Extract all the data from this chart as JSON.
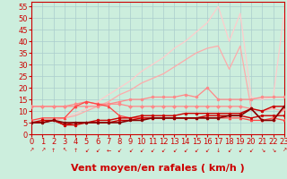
{
  "title": "",
  "xlabel": "Vent moyen/en rafales ( km/h )",
  "ylabel": "",
  "bg_color": "#cceedd",
  "grid_color": "#aacccc",
  "x_ticks": [
    0,
    1,
    2,
    3,
    4,
    5,
    6,
    7,
    8,
    9,
    10,
    11,
    12,
    13,
    14,
    15,
    16,
    17,
    18,
    19,
    20,
    21,
    22,
    23
  ],
  "y_ticks": [
    0,
    5,
    10,
    15,
    20,
    25,
    30,
    35,
    40,
    45,
    50,
    55
  ],
  "ylim": [
    0,
    57
  ],
  "xlim": [
    0,
    23
  ],
  "series": [
    {
      "comment": "lightest pink - wide fan top line, rises to ~55 at x=17, then ~40, then ~52",
      "x": [
        0,
        1,
        2,
        3,
        4,
        5,
        6,
        7,
        8,
        9,
        10,
        11,
        12,
        13,
        14,
        15,
        16,
        17,
        18,
        19,
        20,
        21,
        22,
        23
      ],
      "y": [
        5,
        5,
        6,
        7,
        9,
        11,
        14,
        17,
        20,
        23,
        27,
        30,
        33,
        37,
        40,
        44,
        48,
        55,
        40,
        52,
        16,
        15,
        16,
        52
      ],
      "color": "#ffcccc",
      "lw": 0.9,
      "marker": null,
      "ms": 0
    },
    {
      "comment": "medium pink - second fan line, rises to ~38 at x=17, drops to ~28 x=18",
      "x": [
        0,
        1,
        2,
        3,
        4,
        5,
        6,
        7,
        8,
        9,
        10,
        11,
        12,
        13,
        14,
        15,
        16,
        17,
        18,
        19,
        20,
        21,
        22,
        23
      ],
      "y": [
        5,
        5,
        6,
        7,
        8,
        10,
        12,
        14,
        17,
        19,
        22,
        24,
        26,
        29,
        32,
        35,
        37,
        38,
        28,
        38,
        11,
        10,
        11,
        10
      ],
      "color": "#ffaaaa",
      "lw": 0.9,
      "marker": null,
      "ms": 0
    },
    {
      "comment": "medium pink dot line - flat around 15-16 with dots, peaks ~20 at x=16",
      "x": [
        0,
        1,
        2,
        3,
        4,
        5,
        6,
        7,
        8,
        9,
        10,
        11,
        12,
        13,
        14,
        15,
        16,
        17,
        18,
        19,
        20,
        21,
        22,
        23
      ],
      "y": [
        12,
        12,
        12,
        12,
        12,
        12,
        12,
        13,
        14,
        15,
        15,
        16,
        16,
        16,
        17,
        16,
        20,
        15,
        15,
        15,
        15,
        16,
        16,
        16
      ],
      "color": "#ff8888",
      "lw": 0.9,
      "marker": "o",
      "ms": 2.0
    },
    {
      "comment": "pink line with diamonds - humped shape peak ~14 at x=4-5, then flat ~12",
      "x": [
        0,
        1,
        2,
        3,
        4,
        5,
        6,
        7,
        8,
        9,
        10,
        11,
        12,
        13,
        14,
        15,
        16,
        17,
        18,
        19,
        20,
        21,
        22,
        23
      ],
      "y": [
        12,
        12,
        12,
        12,
        13,
        14,
        13,
        13,
        13,
        12,
        12,
        12,
        12,
        12,
        12,
        12,
        12,
        12,
        12,
        12,
        11,
        6,
        6,
        11
      ],
      "color": "#ff8888",
      "lw": 0.9,
      "marker": "D",
      "ms": 2.0
    },
    {
      "comment": "medium red line with triangles - humped around x=3-5, ~14, then flat ~6-7",
      "x": [
        0,
        1,
        2,
        3,
        4,
        5,
        6,
        7,
        8,
        9,
        10,
        11,
        12,
        13,
        14,
        15,
        16,
        17,
        18,
        19,
        20,
        21,
        22,
        23
      ],
      "y": [
        6,
        7,
        7,
        7,
        12,
        14,
        13,
        12,
        8,
        7,
        7,
        7,
        7,
        7,
        7,
        7,
        7,
        7,
        7,
        7,
        6,
        6,
        7,
        6
      ],
      "color": "#ff4444",
      "lw": 0.9,
      "marker": "^",
      "ms": 2.0
    },
    {
      "comment": "dark red flat line - stays ~7 throughout, slight rise at end",
      "x": [
        0,
        1,
        2,
        3,
        4,
        5,
        6,
        7,
        8,
        9,
        10,
        11,
        12,
        13,
        14,
        15,
        16,
        17,
        18,
        19,
        20,
        21,
        22,
        23
      ],
      "y": [
        5,
        5,
        6,
        4,
        5,
        5,
        5,
        5,
        6,
        6,
        7,
        7,
        7,
        7,
        7,
        7,
        8,
        8,
        8,
        8,
        7,
        8,
        8,
        8
      ],
      "color": "#cc0000",
      "lw": 1.0,
      "marker": "s",
      "ms": 2.0
    },
    {
      "comment": "dark red line - rises slightly, 5->12 at end",
      "x": [
        0,
        1,
        2,
        3,
        4,
        5,
        6,
        7,
        8,
        9,
        10,
        11,
        12,
        13,
        14,
        15,
        16,
        17,
        18,
        19,
        20,
        21,
        22,
        23
      ],
      "y": [
        5,
        6,
        6,
        4,
        4,
        5,
        6,
        6,
        7,
        7,
        8,
        8,
        8,
        8,
        9,
        9,
        9,
        9,
        9,
        9,
        11,
        10,
        12,
        12
      ],
      "color": "#cc0000",
      "lw": 1.0,
      "marker": "o",
      "ms": 2.0
    },
    {
      "comment": "darkest red line - flat ~5-9, then jumps to 11, 6, 6, 12 at end",
      "x": [
        0,
        1,
        2,
        3,
        4,
        5,
        6,
        7,
        8,
        9,
        10,
        11,
        12,
        13,
        14,
        15,
        16,
        17,
        18,
        19,
        20,
        21,
        22,
        23
      ],
      "y": [
        5,
        5,
        6,
        5,
        5,
        5,
        5,
        5,
        5,
        6,
        6,
        7,
        7,
        7,
        7,
        7,
        7,
        7,
        8,
        8,
        11,
        6,
        6,
        12
      ],
      "color": "#880000",
      "lw": 1.2,
      "marker": "o",
      "ms": 2.0
    }
  ],
  "arrows": [
    "↗",
    "↗",
    "↑",
    "↖",
    "↑",
    "↙",
    "↙",
    "←",
    "↙",
    "↙",
    "↙",
    "↙",
    "↙",
    "↙",
    "↙",
    "↙",
    "↙",
    "↓",
    "↙",
    "↙",
    "↙",
    "↘",
    "↘",
    "↗"
  ],
  "xlabel_color": "#cc0000",
  "xlabel_fontsize": 8,
  "tick_color": "#cc0000",
  "tick_fontsize": 6
}
